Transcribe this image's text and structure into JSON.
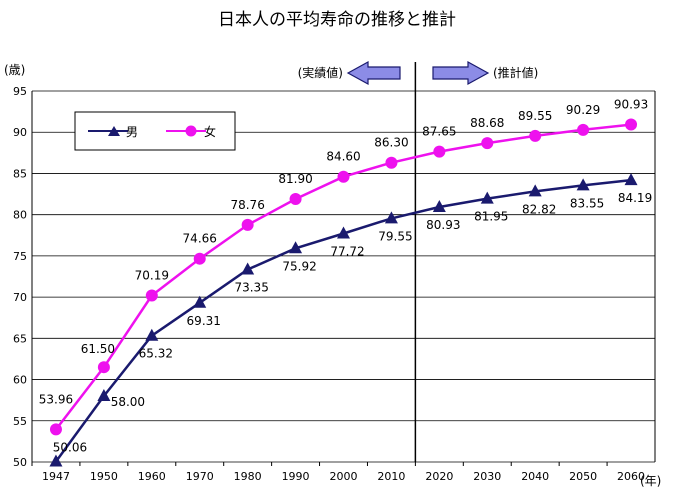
{
  "chart_data": {
    "type": "line",
    "title": "日本人の平均寿命の推移と推計",
    "ylabel": "(歳)",
    "xlabel": "(年)",
    "ylim": [
      50,
      95
    ],
    "yticks": [
      50,
      55,
      60,
      65,
      70,
      75,
      80,
      85,
      90,
      95
    ],
    "categories": [
      "1947",
      "1950",
      "1960",
      "1970",
      "1980",
      "1990",
      "2000",
      "2010",
      "2020",
      "2030",
      "2040",
      "2050",
      "2060"
    ],
    "divider_after_index": 7,
    "actual_label": "(実績値)",
    "projected_label": "(推計値)",
    "legend_position": "top-left",
    "series": [
      {
        "name": "男",
        "marker": "triangle",
        "color": "#1a1a6e",
        "values": [
          50.06,
          58.0,
          65.32,
          69.31,
          73.35,
          75.92,
          77.72,
          79.55,
          80.93,
          81.95,
          82.82,
          83.55,
          84.19
        ],
        "labels": [
          "50.06",
          "58.00",
          "65.32",
          "69.31",
          "73.35",
          "75.92",
          "77.72",
          "79.55",
          "80.93",
          "81.95",
          "82.82",
          "83.55",
          "84.19"
        ]
      },
      {
        "name": "女",
        "marker": "circle",
        "color": "#ee11ee",
        "values": [
          53.96,
          61.5,
          70.19,
          74.66,
          78.76,
          81.9,
          84.6,
          86.3,
          87.65,
          88.68,
          89.55,
          90.29,
          90.93
        ],
        "labels": [
          "53.96",
          "61.50",
          "70.19",
          "74.66",
          "78.76",
          "81.90",
          "84.60",
          "86.30",
          "87.65",
          "88.68",
          "89.55",
          "90.29",
          "90.93"
        ]
      }
    ]
  },
  "colors": {
    "arrow_fill": "#8c8ce6",
    "arrow_stroke": "#1a1a6e"
  }
}
